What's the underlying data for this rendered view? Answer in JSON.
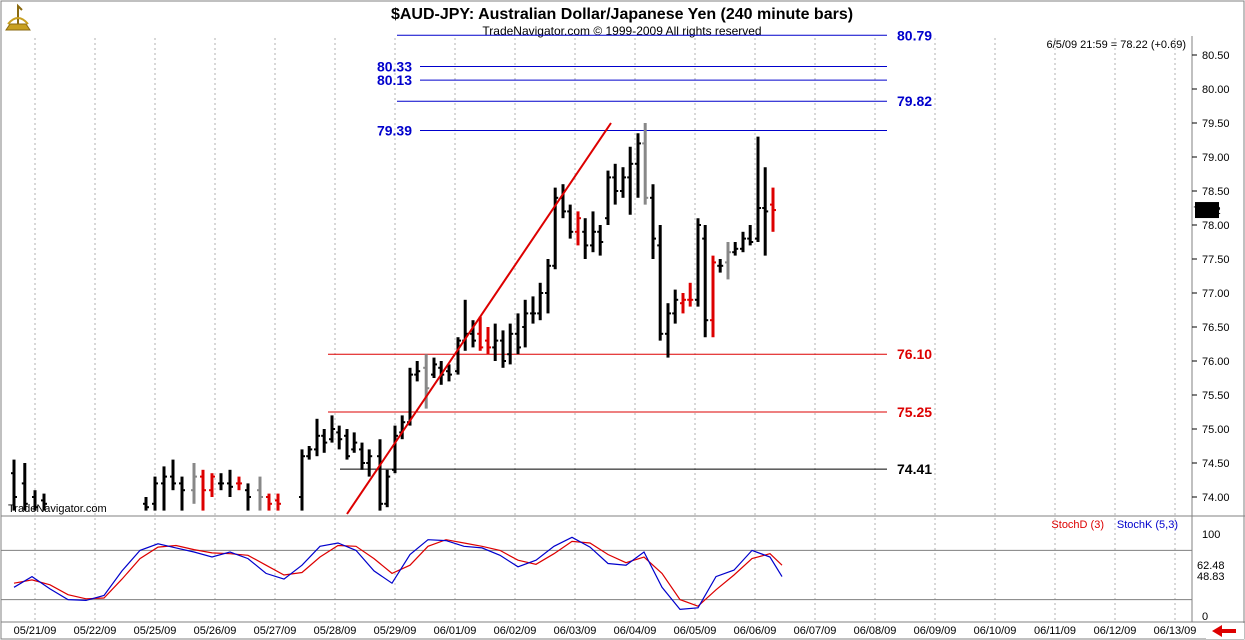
{
  "chart_data": {
    "type": "ohlc",
    "title": "$AUD-JPY:  Australian Dollar/Japanese Yen  (240 minute bars)",
    "subtitle": "TradeNavigator.com © 1999-2009 All rights reserved",
    "watermark": "TradeNavigator.com",
    "last_quote": "6/5/09 21:59 = 78.22 (+0.69)",
    "last_price": "78.22",
    "price_axis": {
      "ylim": [
        73.75,
        80.75
      ],
      "ticks": [
        "74.00",
        "74.50",
        "75.00",
        "75.50",
        "76.00",
        "76.50",
        "77.00",
        "77.50",
        "78.00",
        "78.50",
        "79.00",
        "79.50",
        "80.00",
        "80.50"
      ]
    },
    "x_axis": {
      "dates": [
        "05/21/09",
        "05/22/09",
        "05/25/09",
        "05/26/09",
        "05/27/09",
        "05/28/09",
        "05/29/09",
        "06/01/09",
        "06/02/09",
        "06/03/09",
        "06/04/09",
        "06/05/09",
        "06/06/09",
        "06/07/09",
        "06/08/09",
        "06/09/09",
        "06/10/09",
        "06/11/09",
        "06/12/09",
        "06/13/09"
      ]
    },
    "levels": [
      {
        "label": "80.79",
        "value": 80.79,
        "color": "#0000cc"
      },
      {
        "label": "80.33",
        "value": 80.33,
        "color": "#0000cc"
      },
      {
        "label": "80.13",
        "value": 80.13,
        "color": "#0000cc"
      },
      {
        "label": "79.82",
        "value": 79.82,
        "color": "#0000cc"
      },
      {
        "label": "79.39",
        "value": 79.39,
        "color": "#0000cc"
      },
      {
        "label": "76.10",
        "value": 76.1,
        "color": "#dd0000"
      },
      {
        "label": "75.25",
        "value": 75.25,
        "color": "#dd0000"
      },
      {
        "label": "74.41",
        "value": 74.41,
        "color": "#000000"
      }
    ],
    "trendline": {
      "from": [
        5.05,
        73.75
      ],
      "to": [
        9.45,
        79.5
      ],
      "color": "#dd0000"
    },
    "bars": [
      {
        "t": -0.5,
        "h": 74.55,
        "l": 73.8,
        "o": 74.35,
        "c": 74.0,
        "col": "#000000"
      },
      {
        "t": -0.32,
        "h": 74.5,
        "l": 73.8,
        "o": 74.2,
        "c": 73.9,
        "col": "#000000"
      },
      {
        "t": -0.15,
        "h": 74.1,
        "l": 73.8,
        "o": 74.0,
        "c": 73.85,
        "col": "#000000"
      },
      {
        "t": 0.0,
        "h": 74.05,
        "l": 73.8,
        "o": 73.95,
        "c": 73.9,
        "col": "#000000"
      },
      {
        "t": 1.7,
        "h": 74.0,
        "l": 73.8,
        "o": 73.9,
        "c": 73.85,
        "col": "#000000"
      },
      {
        "t": 1.85,
        "h": 74.3,
        "l": 73.8,
        "o": 73.9,
        "c": 74.2,
        "col": "#000000"
      },
      {
        "t": 2.0,
        "h": 74.45,
        "l": 73.8,
        "o": 74.2,
        "c": 74.3,
        "col": "#000000"
      },
      {
        "t": 2.15,
        "h": 74.55,
        "l": 74.1,
        "o": 74.3,
        "c": 74.2,
        "col": "#000000"
      },
      {
        "t": 2.3,
        "h": 74.3,
        "l": 73.8,
        "o": 74.2,
        "c": 74.1,
        "col": "#000000"
      },
      {
        "t": 2.5,
        "h": 74.5,
        "l": 73.9,
        "o": 74.1,
        "c": 74.3,
        "col": "#888888"
      },
      {
        "t": 2.65,
        "h": 74.4,
        "l": 73.8,
        "o": 74.3,
        "c": 74.1,
        "col": "#dd0000"
      },
      {
        "t": 2.8,
        "h": 74.35,
        "l": 74.0,
        "o": 74.1,
        "c": 74.3,
        "col": "#dd0000"
      },
      {
        "t": 2.95,
        "h": 74.35,
        "l": 74.1,
        "o": 74.2,
        "c": 74.2,
        "col": "#000000"
      },
      {
        "t": 3.1,
        "h": 74.4,
        "l": 74.0,
        "o": 74.2,
        "c": 74.15,
        "col": "#000000"
      },
      {
        "t": 3.25,
        "h": 74.3,
        "l": 74.1,
        "o": 74.2,
        "c": 74.2,
        "col": "#dd0000"
      },
      {
        "t": 3.4,
        "h": 74.2,
        "l": 73.8,
        "o": 74.1,
        "c": 74.0,
        "col": "#000000"
      },
      {
        "t": 3.6,
        "h": 74.3,
        "l": 73.8,
        "o": 74.1,
        "c": 74.0,
        "col": "#888888"
      },
      {
        "t": 3.75,
        "h": 74.05,
        "l": 73.8,
        "o": 74.0,
        "c": 73.9,
        "col": "#dd0000"
      },
      {
        "t": 3.9,
        "h": 74.05,
        "l": 73.8,
        "o": 73.95,
        "c": 73.9,
        "col": "#dd0000"
      },
      {
        "t": 4.3,
        "h": 74.7,
        "l": 73.8,
        "o": 74.0,
        "c": 74.6,
        "col": "#000000"
      },
      {
        "t": 4.42,
        "h": 74.75,
        "l": 74.55,
        "o": 74.6,
        "c": 74.7,
        "col": "#000000"
      },
      {
        "t": 4.55,
        "h": 75.15,
        "l": 74.6,
        "o": 74.7,
        "c": 74.9,
        "col": "#000000"
      },
      {
        "t": 4.67,
        "h": 75.0,
        "l": 74.65,
        "o": 74.9,
        "c": 74.8,
        "col": "#000000"
      },
      {
        "t": 4.8,
        "h": 75.2,
        "l": 74.8,
        "o": 74.85,
        "c": 75.0,
        "col": "#000000"
      },
      {
        "t": 4.92,
        "h": 75.05,
        "l": 74.7,
        "o": 74.95,
        "c": 74.85,
        "col": "#000000"
      },
      {
        "t": 5.05,
        "h": 75.0,
        "l": 74.55,
        "o": 74.9,
        "c": 74.6,
        "col": "#000000"
      },
      {
        "t": 5.17,
        "h": 74.95,
        "l": 74.65,
        "o": 74.7,
        "c": 74.8,
        "col": "#000000"
      },
      {
        "t": 5.3,
        "h": 74.8,
        "l": 74.4,
        "o": 74.7,
        "c": 74.5,
        "col": "#000000"
      },
      {
        "t": 5.42,
        "h": 74.7,
        "l": 74.3,
        "o": 74.5,
        "c": 74.6,
        "col": "#000000"
      },
      {
        "t": 5.6,
        "h": 74.85,
        "l": 73.8,
        "o": 74.6,
        "c": 73.9,
        "col": "#000000"
      },
      {
        "t": 5.72,
        "h": 74.4,
        "l": 73.85,
        "o": 73.9,
        "c": 74.3,
        "col": "#000000"
      },
      {
        "t": 5.85,
        "h": 75.05,
        "l": 74.35,
        "o": 74.4,
        "c": 74.9,
        "col": "#000000"
      },
      {
        "t": 5.97,
        "h": 75.2,
        "l": 74.85,
        "o": 74.95,
        "c": 75.1,
        "col": "#000000"
      },
      {
        "t": 6.1,
        "h": 75.9,
        "l": 75.05,
        "o": 75.1,
        "c": 75.8,
        "col": "#000000"
      },
      {
        "t": 6.22,
        "h": 76.0,
        "l": 75.7,
        "o": 75.8,
        "c": 75.85,
        "col": "#000000"
      },
      {
        "t": 6.37,
        "h": 76.1,
        "l": 75.3,
        "o": 75.9,
        "c": 75.6,
        "col": "#888888"
      },
      {
        "t": 6.5,
        "h": 76.05,
        "l": 75.75,
        "o": 75.8,
        "c": 75.95,
        "col": "#000000"
      },
      {
        "t": 6.62,
        "h": 76.0,
        "l": 75.65,
        "o": 75.9,
        "c": 75.8,
        "col": "#000000"
      },
      {
        "t": 6.75,
        "h": 75.95,
        "l": 75.7,
        "o": 75.85,
        "c": 75.8,
        "col": "#000000"
      },
      {
        "t": 6.9,
        "h": 76.35,
        "l": 75.8,
        "o": 75.85,
        "c": 76.3,
        "col": "#000000"
      },
      {
        "t": 7.02,
        "h": 76.9,
        "l": 76.15,
        "o": 76.3,
        "c": 76.4,
        "col": "#000000"
      },
      {
        "t": 7.15,
        "h": 76.6,
        "l": 76.2,
        "o": 76.4,
        "c": 76.3,
        "col": "#000000"
      },
      {
        "t": 7.27,
        "h": 76.65,
        "l": 76.15,
        "o": 76.4,
        "c": 76.2,
        "col": "#dd0000"
      },
      {
        "t": 7.4,
        "h": 76.5,
        "l": 76.1,
        "o": 76.3,
        "c": 76.2,
        "col": "#dd0000"
      },
      {
        "t": 7.52,
        "h": 76.55,
        "l": 76.0,
        "o": 76.2,
        "c": 76.3,
        "col": "#000000"
      },
      {
        "t": 7.65,
        "h": 76.45,
        "l": 75.9,
        "o": 76.3,
        "c": 76.0,
        "col": "#000000"
      },
      {
        "t": 7.77,
        "h": 76.55,
        "l": 75.95,
        "o": 76.1,
        "c": 76.4,
        "col": "#000000"
      },
      {
        "t": 7.9,
        "h": 76.7,
        "l": 76.1,
        "o": 76.4,
        "c": 76.2,
        "col": "#000000"
      },
      {
        "t": 8.02,
        "h": 76.9,
        "l": 76.2,
        "o": 76.5,
        "c": 76.7,
        "col": "#000000"
      },
      {
        "t": 8.15,
        "h": 76.95,
        "l": 76.55,
        "o": 76.7,
        "c": 76.7,
        "col": "#000000"
      },
      {
        "t": 8.27,
        "h": 77.15,
        "l": 76.6,
        "o": 76.7,
        "c": 77.0,
        "col": "#000000"
      },
      {
        "t": 8.4,
        "h": 77.5,
        "l": 76.7,
        "o": 77.0,
        "c": 77.4,
        "col": "#000000"
      },
      {
        "t": 8.52,
        "h": 78.55,
        "l": 77.35,
        "o": 77.4,
        "c": 78.4,
        "col": "#000000"
      },
      {
        "t": 8.65,
        "h": 78.6,
        "l": 78.1,
        "o": 78.4,
        "c": 78.2,
        "col": "#000000"
      },
      {
        "t": 8.77,
        "h": 78.3,
        "l": 77.8,
        "o": 78.2,
        "c": 77.9,
        "col": "#000000"
      },
      {
        "t": 8.9,
        "h": 78.2,
        "l": 77.7,
        "o": 77.9,
        "c": 78.1,
        "col": "#dd0000"
      },
      {
        "t": 9.02,
        "h": 78.1,
        "l": 77.5,
        "o": 77.9,
        "c": 77.7,
        "col": "#000000"
      },
      {
        "t": 9.15,
        "h": 78.2,
        "l": 77.6,
        "o": 77.7,
        "c": 77.9,
        "col": "#000000"
      },
      {
        "t": 9.27,
        "h": 78.0,
        "l": 77.55,
        "o": 77.9,
        "c": 77.75,
        "col": "#000000"
      },
      {
        "t": 9.4,
        "h": 78.8,
        "l": 78.0,
        "o": 78.1,
        "c": 78.7,
        "col": "#000000"
      },
      {
        "t": 9.52,
        "h": 78.9,
        "l": 78.3,
        "o": 78.7,
        "c": 78.5,
        "col": "#000000"
      },
      {
        "t": 9.65,
        "h": 78.85,
        "l": 78.4,
        "o": 78.5,
        "c": 78.7,
        "col": "#000000"
      },
      {
        "t": 9.77,
        "h": 79.15,
        "l": 78.15,
        "o": 78.7,
        "c": 78.9,
        "col": "#000000"
      },
      {
        "t": 9.9,
        "h": 79.35,
        "l": 78.4,
        "o": 78.9,
        "c": 79.2,
        "col": "#000000"
      },
      {
        "t": 10.02,
        "h": 79.5,
        "l": 78.3,
        "o": 79.2,
        "c": 78.4,
        "col": "#888888"
      },
      {
        "t": 10.15,
        "h": 78.6,
        "l": 77.5,
        "o": 78.4,
        "c": 77.8,
        "col": "#000000"
      },
      {
        "t": 10.27,
        "h": 78.0,
        "l": 76.3,
        "o": 77.7,
        "c": 76.4,
        "col": "#000000"
      },
      {
        "t": 10.4,
        "h": 76.85,
        "l": 76.05,
        "o": 76.4,
        "c": 76.7,
        "col": "#000000"
      },
      {
        "t": 10.52,
        "h": 77.05,
        "l": 76.55,
        "o": 76.7,
        "c": 76.9,
        "col": "#000000"
      },
      {
        "t": 10.65,
        "h": 77.0,
        "l": 76.7,
        "o": 76.85,
        "c": 76.9,
        "col": "#dd0000"
      },
      {
        "t": 10.77,
        "h": 77.15,
        "l": 76.8,
        "o": 76.9,
        "c": 76.9,
        "col": "#dd0000"
      },
      {
        "t": 10.9,
        "h": 78.1,
        "l": 76.8,
        "o": 76.9,
        "c": 78.0,
        "col": "#000000"
      },
      {
        "t": 11.02,
        "h": 78.0,
        "l": 76.35,
        "o": 77.8,
        "c": 76.6,
        "col": "#000000"
      },
      {
        "t": 11.15,
        "h": 77.55,
        "l": 76.35,
        "o": 76.6,
        "c": 77.45,
        "col": "#dd0000"
      },
      {
        "t": 11.27,
        "h": 77.5,
        "l": 77.3,
        "o": 77.4,
        "c": 77.4,
        "col": "#000000"
      },
      {
        "t": 11.4,
        "h": 77.75,
        "l": 77.2,
        "o": 77.45,
        "c": 77.6,
        "col": "#888888"
      },
      {
        "t": 11.52,
        "h": 77.75,
        "l": 77.55,
        "o": 77.6,
        "c": 77.65,
        "col": "#000000"
      },
      {
        "t": 11.65,
        "h": 77.9,
        "l": 77.6,
        "o": 77.65,
        "c": 77.8,
        "col": "#000000"
      },
      {
        "t": 11.77,
        "h": 78.0,
        "l": 77.7,
        "o": 77.8,
        "c": 77.75,
        "col": "#000000"
      },
      {
        "t": 11.9,
        "h": 79.3,
        "l": 77.75,
        "o": 77.8,
        "c": 78.25,
        "col": "#000000"
      },
      {
        "t": 12.02,
        "h": 78.85,
        "l": 77.55,
        "o": 78.25,
        "c": 78.2,
        "col": "#000000"
      },
      {
        "t": 12.15,
        "h": 78.55,
        "l": 77.9,
        "o": 78.3,
        "c": 78.22,
        "col": "#dd0000"
      }
    ],
    "stochastic": {
      "legend_d": "StochD (3)",
      "legend_k": "StochK (5,3)",
      "d_value": "62.48",
      "k_value": "48.83",
      "ticks": [
        "100",
        "0"
      ],
      "ylim": [
        0,
        100
      ],
      "upper": 80,
      "lower": 20,
      "k": [
        [
          -0.5,
          35
        ],
        [
          -0.2,
          48
        ],
        [
          0.1,
          33
        ],
        [
          0.4,
          20
        ],
        [
          0.7,
          19
        ],
        [
          1.0,
          25
        ],
        [
          1.3,
          55
        ],
        [
          1.6,
          80
        ],
        [
          1.9,
          88
        ],
        [
          2.2,
          83
        ],
        [
          2.5,
          78
        ],
        [
          2.8,
          72
        ],
        [
          3.1,
          78
        ],
        [
          3.4,
          70
        ],
        [
          3.7,
          52
        ],
        [
          4.0,
          45
        ],
        [
          4.3,
          62
        ],
        [
          4.6,
          85
        ],
        [
          4.9,
          89
        ],
        [
          5.2,
          80
        ],
        [
          5.5,
          55
        ],
        [
          5.8,
          40
        ],
        [
          6.1,
          75
        ],
        [
          6.4,
          93
        ],
        [
          6.7,
          92
        ],
        [
          7.0,
          85
        ],
        [
          7.3,
          83
        ],
        [
          7.6,
          74
        ],
        [
          7.9,
          60
        ],
        [
          8.2,
          68
        ],
        [
          8.5,
          85
        ],
        [
          8.8,
          96
        ],
        [
          9.1,
          84
        ],
        [
          9.4,
          64
        ],
        [
          9.7,
          62
        ],
        [
          10.0,
          78
        ],
        [
          10.3,
          35
        ],
        [
          10.6,
          8
        ],
        [
          10.9,
          10
        ],
        [
          11.2,
          48
        ],
        [
          11.5,
          56
        ],
        [
          11.8,
          80
        ],
        [
          12.1,
          72
        ],
        [
          12.3,
          48
        ]
      ],
      "d": [
        [
          -0.5,
          40
        ],
        [
          -0.2,
          44
        ],
        [
          0.1,
          38
        ],
        [
          0.4,
          26
        ],
        [
          0.7,
          21
        ],
        [
          1.0,
          22
        ],
        [
          1.3,
          45
        ],
        [
          1.6,
          70
        ],
        [
          1.9,
          84
        ],
        [
          2.2,
          86
        ],
        [
          2.5,
          81
        ],
        [
          2.8,
          77
        ],
        [
          3.1,
          76
        ],
        [
          3.4,
          74
        ],
        [
          3.7,
          62
        ],
        [
          4.0,
          50
        ],
        [
          4.3,
          53
        ],
        [
          4.6,
          72
        ],
        [
          4.9,
          86
        ],
        [
          5.2,
          85
        ],
        [
          5.5,
          70
        ],
        [
          5.8,
          52
        ],
        [
          6.1,
          62
        ],
        [
          6.4,
          85
        ],
        [
          6.7,
          93
        ],
        [
          7.0,
          89
        ],
        [
          7.3,
          85
        ],
        [
          7.6,
          80
        ],
        [
          7.9,
          68
        ],
        [
          8.2,
          63
        ],
        [
          8.5,
          76
        ],
        [
          8.8,
          91
        ],
        [
          9.1,
          89
        ],
        [
          9.4,
          75
        ],
        [
          9.7,
          65
        ],
        [
          10.0,
          72
        ],
        [
          10.3,
          52
        ],
        [
          10.6,
          20
        ],
        [
          10.9,
          12
        ],
        [
          11.2,
          32
        ],
        [
          11.5,
          50
        ],
        [
          11.8,
          70
        ],
        [
          12.1,
          76
        ],
        [
          12.3,
          62
        ]
      ]
    }
  }
}
